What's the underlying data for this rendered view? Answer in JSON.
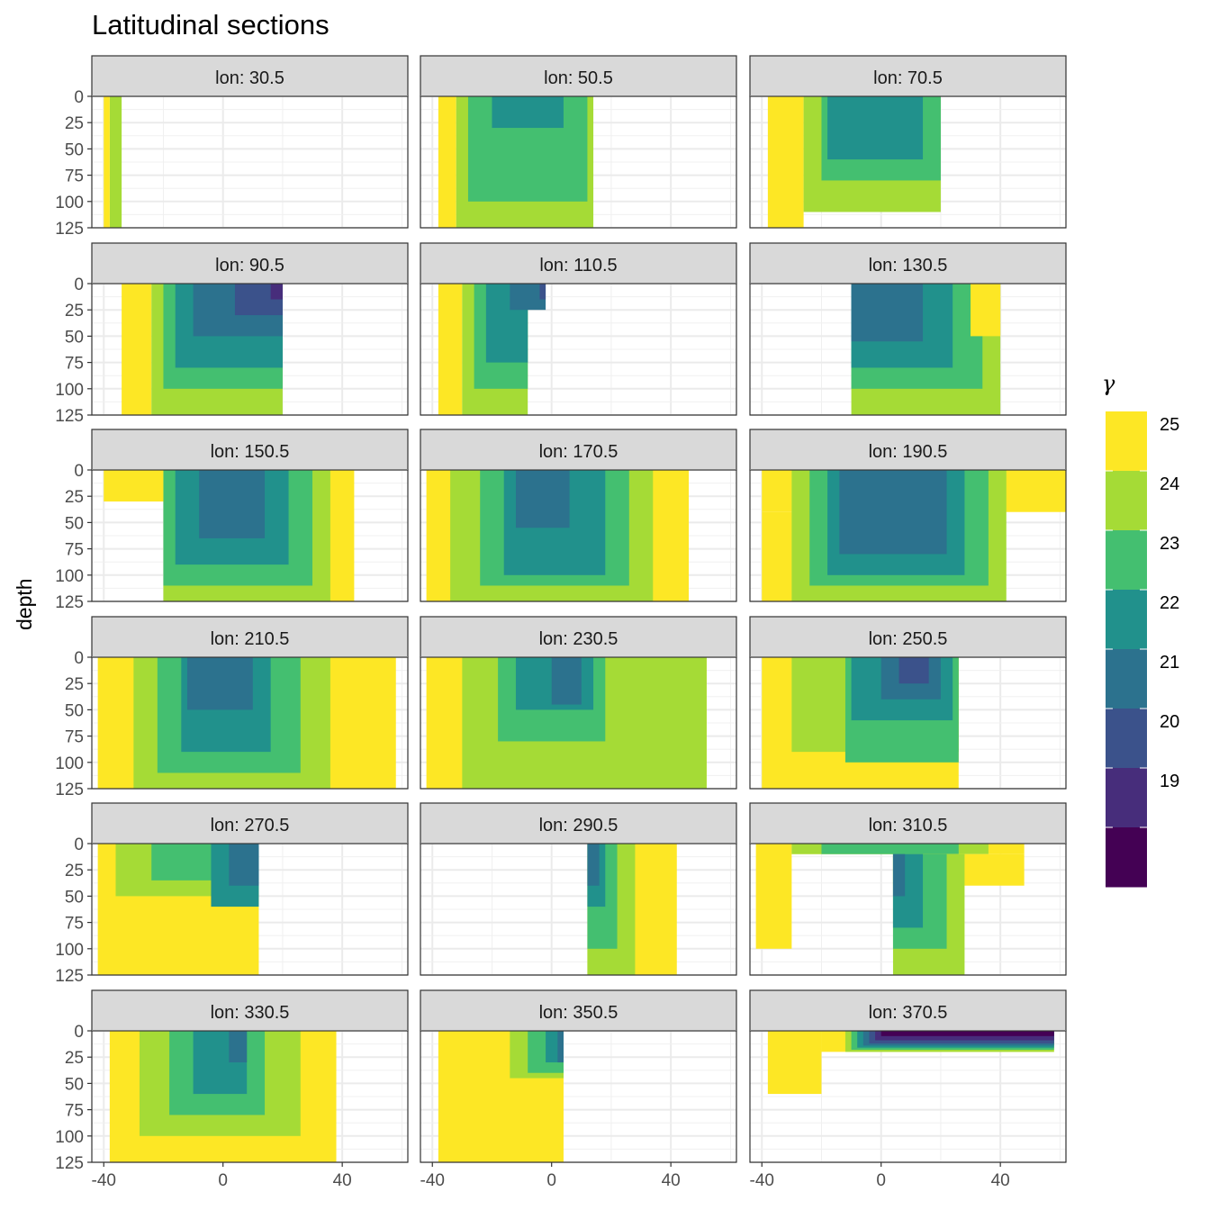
{
  "chart_data": {
    "type": "heatmap",
    "title": "Latitudinal sections",
    "xlabel": "",
    "ylabel": "depth",
    "facet_label_prefix": "lon: ",
    "x_ticks": [
      -40,
      0,
      40
    ],
    "y_ticks": [
      0,
      25,
      50,
      75,
      100,
      125
    ],
    "xlim": [
      -44,
      62
    ],
    "ylim": [
      125,
      0
    ],
    "legend": {
      "title": "γ",
      "breaks": [
        25,
        24,
        23,
        22,
        21,
        20,
        19
      ],
      "placement": "right"
    },
    "colors": {
      "19": "#440154",
      "20": "#472d7b",
      "21": "#3b528b",
      "22": "#2c728e",
      "23": "#21918c",
      "24": "#44bf70",
      "25": "#a5db36",
      "26": "#fde725"
    },
    "panels": [
      {
        "lon": "30.5",
        "lat_min": -40,
        "lat_max": -32,
        "bands": [
          [
            -38,
            -34,
            0,
            125,
            25
          ],
          [
            -40,
            -38,
            0,
            125,
            26
          ]
        ]
      },
      {
        "lon": "50.5",
        "lat_min": -38,
        "lat_max": 14,
        "bands": [
          [
            -38,
            -32,
            0,
            125,
            26
          ],
          [
            -32,
            14,
            0,
            125,
            25
          ],
          [
            -28,
            12,
            0,
            100,
            24
          ],
          [
            -20,
            4,
            0,
            30,
            23
          ]
        ]
      },
      {
        "lon": "70.5",
        "lat_min": -38,
        "lat_max": 20,
        "bands": [
          [
            -38,
            -26,
            0,
            125,
            26
          ],
          [
            -26,
            20,
            0,
            110,
            25
          ],
          [
            -20,
            20,
            0,
            80,
            24
          ],
          [
            -18,
            14,
            0,
            60,
            23
          ]
        ]
      },
      {
        "lon": "90.5",
        "lat_min": -34,
        "lat_max": 20,
        "bands": [
          [
            -34,
            -24,
            0,
            125,
            26
          ],
          [
            -24,
            20,
            0,
            125,
            25
          ],
          [
            -20,
            20,
            0,
            100,
            24
          ],
          [
            -16,
            20,
            0,
            80,
            23
          ],
          [
            -10,
            20,
            0,
            50,
            22
          ],
          [
            4,
            20,
            0,
            30,
            21
          ],
          [
            16,
            20,
            0,
            15,
            20
          ]
        ]
      },
      {
        "lon": "110.5",
        "lat_min": -38,
        "lat_max": -2,
        "bands": [
          [
            -38,
            -30,
            0,
            125,
            26
          ],
          [
            -30,
            -8,
            0,
            125,
            25
          ],
          [
            -26,
            -8,
            0,
            100,
            24
          ],
          [
            -22,
            -8,
            0,
            75,
            23
          ],
          [
            -14,
            -2,
            0,
            25,
            22
          ],
          [
            -4,
            -2,
            0,
            15,
            21
          ]
        ]
      },
      {
        "lon": "130.5",
        "lat_min": -10,
        "lat_max": 40,
        "bands": [
          [
            -10,
            40,
            0,
            125,
            25
          ],
          [
            -10,
            34,
            0,
            100,
            24
          ],
          [
            -10,
            24,
            0,
            80,
            23
          ],
          [
            -10,
            14,
            0,
            55,
            22
          ],
          [
            30,
            40,
            0,
            50,
            26
          ]
        ]
      },
      {
        "lon": "150.5",
        "lat_min": -40,
        "lat_max": 44,
        "bands": [
          [
            -40,
            -20,
            0,
            30,
            26
          ],
          [
            -20,
            44,
            0,
            125,
            26
          ],
          [
            -20,
            36,
            0,
            125,
            25
          ],
          [
            -20,
            30,
            0,
            110,
            24
          ],
          [
            -16,
            22,
            0,
            90,
            23
          ],
          [
            -8,
            14,
            0,
            65,
            22
          ]
        ]
      },
      {
        "lon": "170.5",
        "lat_min": -42,
        "lat_max": 46,
        "bands": [
          [
            -42,
            46,
            0,
            125,
            26
          ],
          [
            -34,
            34,
            0,
            125,
            25
          ],
          [
            -24,
            26,
            0,
            110,
            24
          ],
          [
            -16,
            18,
            0,
            100,
            23
          ],
          [
            -12,
            6,
            0,
            55,
            22
          ]
        ]
      },
      {
        "lon": "190.5",
        "lat_min": -40,
        "lat_max": 62,
        "bands": [
          [
            -40,
            62,
            0,
            40,
            26
          ],
          [
            -40,
            36,
            40,
            125,
            26
          ],
          [
            -30,
            42,
            0,
            125,
            25
          ],
          [
            -24,
            36,
            0,
            110,
            24
          ],
          [
            -18,
            28,
            0,
            100,
            23
          ],
          [
            -14,
            22,
            0,
            80,
            22
          ]
        ]
      },
      {
        "lon": "210.5",
        "lat_min": -42,
        "lat_max": 58,
        "bands": [
          [
            -42,
            58,
            0,
            125,
            26
          ],
          [
            -30,
            36,
            0,
            125,
            25
          ],
          [
            -22,
            26,
            0,
            110,
            24
          ],
          [
            -14,
            16,
            0,
            90,
            23
          ],
          [
            -12,
            10,
            0,
            50,
            22
          ]
        ]
      },
      {
        "lon": "230.5",
        "lat_min": -42,
        "lat_max": 52,
        "bands": [
          [
            -42,
            52,
            0,
            125,
            26
          ],
          [
            -30,
            52,
            0,
            125,
            25
          ],
          [
            -18,
            18,
            0,
            80,
            24
          ],
          [
            -12,
            14,
            0,
            50,
            23
          ],
          [
            0,
            10,
            0,
            45,
            22
          ]
        ]
      },
      {
        "lon": "250.5",
        "lat_min": -40,
        "lat_max": 26,
        "bands": [
          [
            -40,
            26,
            0,
            125,
            26
          ],
          [
            -30,
            26,
            0,
            90,
            25
          ],
          [
            -12,
            26,
            0,
            100,
            24
          ],
          [
            -10,
            24,
            0,
            60,
            23
          ],
          [
            0,
            20,
            0,
            40,
            22
          ],
          [
            6,
            16,
            0,
            25,
            21
          ]
        ]
      },
      {
        "lon": "270.5",
        "lat_min": -42,
        "lat_max": 12,
        "bands": [
          [
            -42,
            12,
            0,
            125,
            26
          ],
          [
            -36,
            12,
            0,
            50,
            25
          ],
          [
            -24,
            12,
            0,
            35,
            24
          ],
          [
            -4,
            12,
            0,
            60,
            23
          ],
          [
            2,
            12,
            0,
            40,
            22
          ]
        ]
      },
      {
        "lon": "290.5",
        "lat_min": 12,
        "lat_max": 42,
        "bands": [
          [
            12,
            42,
            0,
            125,
            26
          ],
          [
            12,
            28,
            0,
            125,
            25
          ],
          [
            12,
            22,
            0,
            100,
            24
          ],
          [
            12,
            18,
            0,
            60,
            23
          ],
          [
            12,
            16,
            0,
            40,
            22
          ]
        ]
      },
      {
        "lon": "310.5",
        "lat_min": -42,
        "lat_max": 48,
        "bands": [
          [
            -42,
            -30,
            0,
            100,
            26
          ],
          [
            -30,
            48,
            0,
            10,
            26
          ],
          [
            -30,
            36,
            0,
            10,
            25
          ],
          [
            -20,
            26,
            0,
            10,
            24
          ],
          [
            4,
            48,
            10,
            40,
            26
          ],
          [
            4,
            28,
            10,
            125,
            25
          ],
          [
            4,
            22,
            10,
            100,
            24
          ],
          [
            4,
            14,
            10,
            80,
            23
          ],
          [
            4,
            8,
            10,
            50,
            22
          ]
        ]
      },
      {
        "lon": "330.5",
        "lat_min": -38,
        "lat_max": 38,
        "bands": [
          [
            -38,
            38,
            0,
            125,
            26
          ],
          [
            -28,
            26,
            0,
            100,
            25
          ],
          [
            -18,
            14,
            0,
            80,
            24
          ],
          [
            -10,
            8,
            0,
            60,
            23
          ],
          [
            2,
            8,
            0,
            30,
            22
          ]
        ]
      },
      {
        "lon": "350.5",
        "lat_min": -38,
        "lat_max": 4,
        "bands": [
          [
            -38,
            4,
            0,
            125,
            26
          ],
          [
            -14,
            4,
            0,
            45,
            25
          ],
          [
            -8,
            4,
            0,
            40,
            24
          ],
          [
            -2,
            4,
            0,
            30,
            23
          ],
          [
            2,
            4,
            0,
            30,
            22
          ]
        ]
      },
      {
        "lon": "370.5",
        "lat_min": -38,
        "lat_max": 58,
        "bands": [
          [
            -38,
            -20,
            0,
            60,
            26
          ],
          [
            -20,
            58,
            0,
            20,
            26
          ],
          [
            -12,
            58,
            0,
            20,
            25
          ],
          [
            -10,
            58,
            0,
            18,
            24
          ],
          [
            -8,
            58,
            0,
            16,
            23
          ],
          [
            -6,
            58,
            0,
            14,
            22
          ],
          [
            -4,
            58,
            0,
            12,
            21
          ],
          [
            -2,
            58,
            0,
            9,
            20
          ],
          [
            0,
            58,
            0,
            5,
            19
          ]
        ]
      }
    ]
  }
}
